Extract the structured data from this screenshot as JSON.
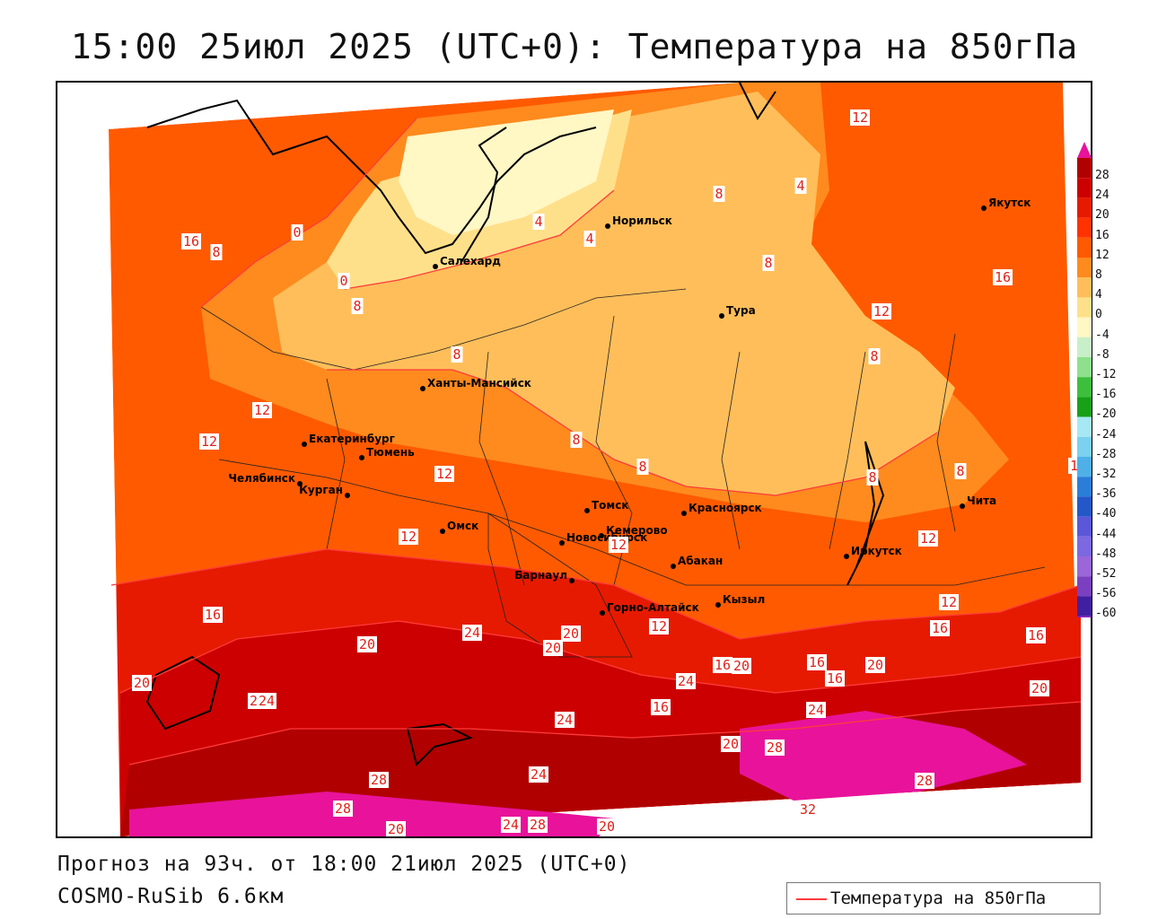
{
  "title": "15:00 25июл 2025 (UTC+0): Температура на 850гПа",
  "footer": {
    "forecast": "Прогноз на 93ч. от 18:00 21июл 2025 (UTC+0)",
    "model": "COSMO-RuSib 6.6км"
  },
  "legend": {
    "label": "Температура на 850гПа",
    "line_color": "#ff3b3b"
  },
  "colorbar": {
    "labels": [
      "28",
      "24",
      "20",
      "16",
      "12",
      "8",
      "4",
      "0",
      "-4",
      "-8",
      "-12",
      "-16",
      "-20",
      "-24",
      "-28",
      "-32",
      "-36",
      "-40",
      "-44",
      "-48",
      "-52",
      "-56",
      "-60"
    ],
    "colors": [
      "#b10000",
      "#cc0000",
      "#e61a00",
      "#ff3300",
      "#ff5a00",
      "#ff8a1e",
      "#ffbe5a",
      "#ffe08a",
      "#fff7c4",
      "#c8f0c8",
      "#8ee08e",
      "#3dbf3d",
      "#18a018",
      "#a6e8f4",
      "#7cd0f0",
      "#4fb0e8",
      "#2a7ed8",
      "#2458c8",
      "#5a58d8",
      "#7c68e0",
      "#9a66d8",
      "#7a40c0",
      "#4020a0"
    ]
  },
  "cities": [
    {
      "name": "Норильск"
    },
    {
      "name": "Якутск"
    },
    {
      "name": "Салехард"
    },
    {
      "name": "Тура"
    },
    {
      "name": "Ханты-Мансийск"
    },
    {
      "name": "Екатеринбург"
    },
    {
      "name": "Тюмень"
    },
    {
      "name": "Челябинск"
    },
    {
      "name": "Курган"
    },
    {
      "name": "Омск"
    },
    {
      "name": "Новосибирск"
    },
    {
      "name": "Томск"
    },
    {
      "name": "Кемерово"
    },
    {
      "name": "Красноярск"
    },
    {
      "name": "Абакан"
    },
    {
      "name": "Барнаул"
    },
    {
      "name": "Горно-Алтайск"
    },
    {
      "name": "Кызыл"
    },
    {
      "name": "Иркутск"
    },
    {
      "name": "Чита"
    }
  ],
  "isolines": [
    "12",
    "8",
    "16",
    "8",
    "4",
    "0",
    "4",
    "0",
    "4",
    "8",
    "8",
    "8",
    "12",
    "16",
    "8",
    "12",
    "12",
    "8",
    "8",
    "8",
    "8",
    "12",
    "12",
    "16",
    "12",
    "12",
    "12",
    "12",
    "12",
    "16",
    "16",
    "20",
    "24",
    "20",
    "20",
    "24",
    "16",
    "16",
    "20",
    "16",
    "20",
    "20",
    "24",
    "20",
    "16",
    "24",
    "20",
    "24",
    "28",
    "24",
    "20",
    "28",
    "28",
    "32",
    "28",
    "20",
    "24",
    "28",
    "20"
  ]
}
